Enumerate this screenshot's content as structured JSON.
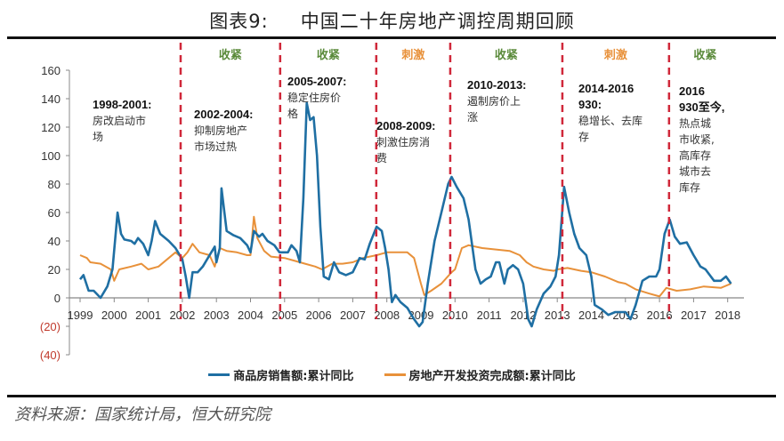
{
  "header": {
    "figure_label": "图表9:",
    "title": "中国二十年房地产调控周期回顾"
  },
  "source": "资料来源：国家统计局，恒大研究院",
  "chart_data": {
    "type": "line",
    "title": "中国二十年房地产调控周期回顾",
    "xlabel": "",
    "ylabel": "",
    "xlim": [
      1999,
      2018.4
    ],
    "ylim": [
      -40,
      160
    ],
    "yticks": [
      160,
      140,
      120,
      100,
      80,
      60,
      40,
      20,
      0,
      -20,
      -40
    ],
    "ytick_labels": [
      "160",
      "140",
      "120",
      "100",
      "80",
      "60",
      "40",
      "20",
      "0",
      "(20)",
      "(40)"
    ],
    "xticks": [
      1999,
      2000,
      2001,
      2002,
      2003,
      2004,
      2005,
      2006,
      2007,
      2008,
      2009,
      2010,
      2011,
      2012,
      2013,
      2014,
      2015,
      2016,
      2017,
      2018
    ],
    "xtick_labels": [
      "1999",
      "2000",
      "2001",
      "2002",
      "2003",
      "2004",
      "2005",
      "2006",
      "2007",
      "2008",
      "2009",
      "2010",
      "2011",
      "2012",
      "2013",
      "2014",
      "2015",
      "2016",
      "2017",
      "2018"
    ],
    "grid": false,
    "legend": "bottom",
    "colors": {
      "sales": "#1f6fa3",
      "investment": "#e8913a",
      "divider": "#d0283a",
      "tighten": "#5a8a3a",
      "stimulus": "#e8913a",
      "negative_tick": "#c0392b"
    },
    "series": [
      {
        "name": "商品房销售额:累计同比",
        "color": "#1f6fa3",
        "x": [
          1999.0,
          1999.1,
          1999.25,
          1999.4,
          1999.6,
          1999.8,
          1999.95,
          2000.1,
          2000.2,
          2000.3,
          2000.5,
          2000.6,
          2000.7,
          2000.85,
          2001.0,
          2001.1,
          2001.2,
          2001.35,
          2001.6,
          2001.8,
          2002.0,
          2002.1,
          2002.2,
          2002.3,
          2002.45,
          2002.6,
          2002.8,
          2002.95,
          2003.0,
          2003.1,
          2003.15,
          2003.3,
          2003.5,
          2003.7,
          2003.9,
          2004.0,
          2004.1,
          2004.25,
          2004.35,
          2004.5,
          2004.7,
          2004.85,
          2005.0,
          2005.1,
          2005.2,
          2005.35,
          2005.45,
          2005.55,
          2005.65,
          2005.75,
          2005.85,
          2005.95,
          2006.05,
          2006.15,
          2006.3,
          2006.45,
          2006.6,
          2006.8,
          2007.0,
          2007.2,
          2007.35,
          2007.5,
          2007.7,
          2007.85,
          2007.95,
          2008.05,
          2008.15,
          2008.25,
          2008.4,
          2008.6,
          2008.8,
          2008.95,
          2009.05,
          2009.2,
          2009.4,
          2009.6,
          2009.8,
          2009.9,
          2010.05,
          2010.25,
          2010.4,
          2010.6,
          2010.75,
          2010.9,
          2011.05,
          2011.2,
          2011.3,
          2011.45,
          2011.55,
          2011.7,
          2011.85,
          2012.0,
          2012.15,
          2012.25,
          2012.4,
          2012.6,
          2012.8,
          2012.95,
          2013.05,
          2013.2,
          2013.35,
          2013.5,
          2013.65,
          2013.85,
          2014.0,
          2014.1,
          2014.3,
          2014.5,
          2014.7,
          2014.9,
          2015.0,
          2015.15,
          2015.3,
          2015.5,
          2015.7,
          2015.9,
          2016.0,
          2016.15,
          2016.3,
          2016.45,
          2016.6,
          2016.8,
          2017.0,
          2017.2,
          2017.35,
          2017.6,
          2017.8,
          2017.95,
          2018.1
        ],
        "values": [
          13,
          16,
          5,
          5,
          0,
          8,
          20,
          60,
          45,
          41,
          40,
          38,
          42,
          38,
          30,
          40,
          54,
          45,
          40,
          35,
          27,
          15,
          0,
          18,
          18,
          22,
          30,
          36,
          25,
          35,
          77,
          47,
          44,
          42,
          37,
          32,
          47,
          43,
          45,
          40,
          37,
          32,
          32,
          32,
          37,
          33,
          25,
          70,
          137,
          125,
          127,
          100,
          50,
          15,
          13,
          25,
          18,
          16,
          18,
          28,
          27,
          38,
          50,
          47,
          35,
          20,
          -3,
          2,
          -3,
          -7,
          -15,
          -20,
          -17,
          10,
          40,
          60,
          80,
          85,
          78,
          70,
          55,
          20,
          10,
          13,
          15,
          25,
          25,
          10,
          20,
          23,
          20,
          10,
          -15,
          -20,
          -8,
          3,
          8,
          15,
          30,
          78,
          60,
          45,
          35,
          30,
          15,
          -5,
          -8,
          -12,
          -10,
          -10,
          -10,
          -15,
          -5,
          12,
          15,
          15,
          20,
          45,
          55,
          43,
          38,
          39,
          30,
          22,
          20,
          12,
          12,
          15,
          10
        ]
      },
      {
        "name": "房地产开发投资完成额:累计同比",
        "color": "#e8913a",
        "x": [
          1999.0,
          1999.2,
          1999.3,
          1999.6,
          1999.9,
          2000.0,
          2000.15,
          2000.5,
          2000.8,
          2001.0,
          2001.3,
          2001.6,
          2001.8,
          2002.0,
          2002.15,
          2002.3,
          2002.5,
          2002.8,
          2002.95,
          2003.1,
          2003.3,
          2003.6,
          2003.9,
          2004.0,
          2004.1,
          2004.2,
          2004.4,
          2004.6,
          2005.0,
          2005.3,
          2005.6,
          2005.9,
          2006.1,
          2006.4,
          2006.7,
          2007.0,
          2007.3,
          2007.7,
          2008.0,
          2008.4,
          2008.6,
          2008.8,
          2009.0,
          2009.1,
          2009.3,
          2009.6,
          2009.9,
          2010.0,
          2010.2,
          2010.4,
          2010.8,
          2011.2,
          2011.6,
          2011.9,
          2012.1,
          2012.3,
          2012.6,
          2012.9,
          2013.0,
          2013.3,
          2013.7,
          2014.0,
          2014.4,
          2014.8,
          2015.0,
          2015.3,
          2015.7,
          2016.0,
          2016.2,
          2016.5,
          2016.9,
          2017.3,
          2017.8,
          2018.1
        ],
        "values": [
          30,
          28,
          25,
          24,
          20,
          12,
          20,
          22,
          24,
          20,
          22,
          28,
          32,
          28,
          32,
          38,
          32,
          30,
          22,
          35,
          33,
          32,
          30,
          30,
          57,
          42,
          33,
          29,
          28,
          26,
          24,
          22,
          20,
          24,
          24,
          25,
          28,
          30,
          32,
          32,
          32,
          28,
          10,
          2,
          5,
          10,
          18,
          20,
          35,
          37,
          35,
          34,
          33,
          30,
          25,
          22,
          20,
          19,
          20,
          21,
          19,
          18,
          15,
          11,
          10,
          6,
          3,
          1,
          7,
          5,
          6,
          8,
          7,
          10
        ]
      }
    ],
    "period_dividers": [
      2001.95,
      2004.87,
      2007.69,
      2009.86,
      2013.15,
      2016.28
    ],
    "phase_labels": [
      "收紧",
      "收紧",
      "刺激",
      "收紧",
      "刺激",
      "收紧"
    ],
    "phase_types": [
      "tighten",
      "tighten",
      "stimulus",
      "tighten",
      "stimulus",
      "tighten"
    ],
    "annotations": [
      {
        "period": "1998-2001:",
        "lines": [
          "房改启动市",
          "场"
        ]
      },
      {
        "period": "2002-2004:",
        "lines": [
          "抑制房地产",
          "市场过热"
        ]
      },
      {
        "period": "2005-2007:",
        "lines": [
          "稳定住房价",
          "格"
        ]
      },
      {
        "period": "2008-2009:",
        "lines": [
          "刺激住房消",
          "费"
        ]
      },
      {
        "period": "2010-2013:",
        "lines": [
          "遏制房价上",
          "涨"
        ]
      },
      {
        "period": "2014-2016 930:",
        "lines": [
          "稳增长、去库",
          "存"
        ]
      },
      {
        "period": "2016 930至今,",
        "lines": [
          "热点城",
          "市收紧,",
          "高库存",
          "城市去",
          "库存"
        ]
      }
    ]
  }
}
